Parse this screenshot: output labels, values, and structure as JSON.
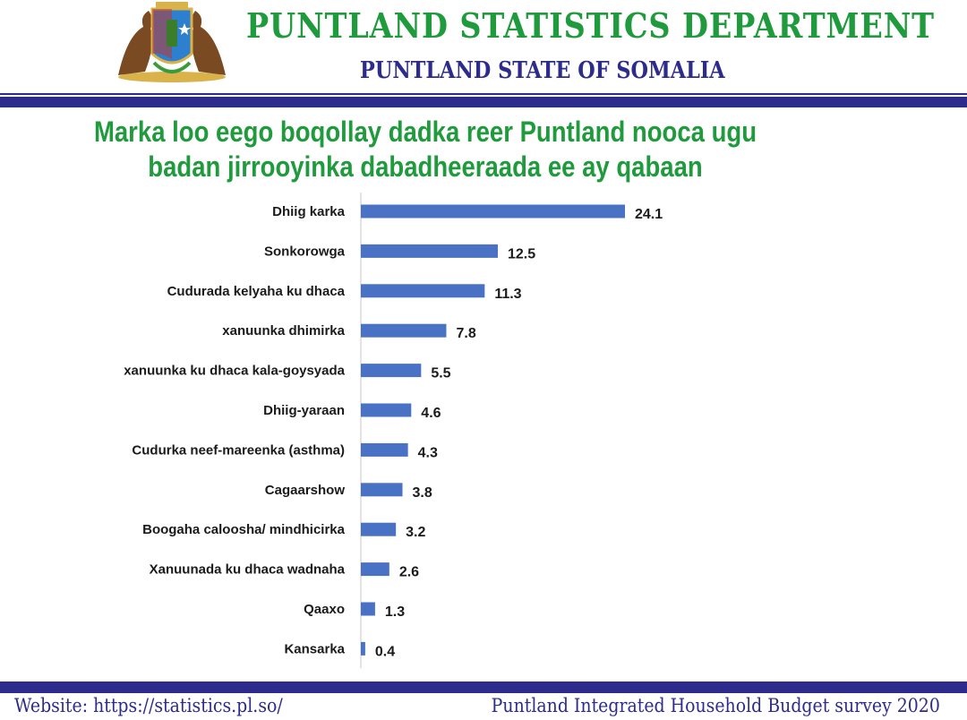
{
  "header": {
    "org_name": "PUNTLAND STATISTICS DEPARTMENT",
    "org_sub": "PUNTLAND STATE OF SOMALIA"
  },
  "footer": {
    "website": "Website: https://statistics.pl.so/",
    "survey": "Puntland Integrated Household Budget survey 2020"
  },
  "colors": {
    "title_green": "#1f9a3c",
    "band_navy": "#2d2c8c",
    "bar_blue": "#4a72c4"
  },
  "chart_data": {
    "type": "bar",
    "orientation": "horizontal",
    "title": "Marka loo eego boqollay dadka reer Puntland nooca ugu badan jirrooyinka dabadheeraada ee ay qabaan",
    "categories": [
      "Dhiig karka",
      "Sonkorowga",
      "Cudurada kelyaha ku dhaca",
      "xanuunka dhimirka",
      "xanuunka ku dhaca kala-goysyada",
      "Dhiig-yaraan",
      "Cudurka neef-mareenka (asthma)",
      "Cagaarshow",
      "Boogaha caloosha/ mindhicirka",
      "Xanuunada ku dhaca wadnaha",
      "Qaaxo",
      "Kansarka"
    ],
    "values": [
      24.1,
      12.5,
      11.3,
      7.8,
      5.5,
      4.6,
      4.3,
      3.8,
      3.2,
      2.6,
      1.3,
      0.4
    ],
    "value_labels": [
      "24.1",
      "12.5",
      "11.3",
      "7.8",
      "5.5",
      "4.6",
      "4.3",
      "3.8",
      "3.2",
      "2.6",
      "1.3",
      "0.4"
    ],
    "xlim": [
      0,
      25
    ],
    "grid": false,
    "legend": "none",
    "data_labels": true
  }
}
